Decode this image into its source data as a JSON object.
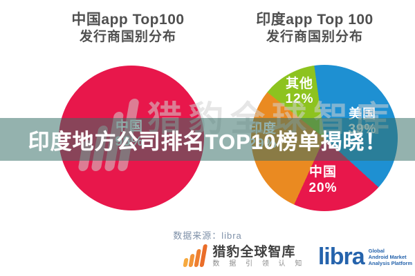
{
  "banner": {
    "text": "印度地方公司排名TOP10榜单揭晓！",
    "overlay_color": "rgba(52,110,102,0.53)",
    "text_color": "#ffffff"
  },
  "watermark": {
    "text": "猎豹全球智库"
  },
  "chart_data": [
    {
      "type": "pie",
      "title": "中国app Top100 发行商国别分布",
      "title_lines": [
        "中国app Top100",
        "发行商国别分布"
      ],
      "legend_position": "none",
      "labels_on_slices": true,
      "segments": [
        {
          "label": "中国",
          "pct": 96,
          "pct_label": "96%",
          "color": "#e8174b"
        }
      ]
    },
    {
      "type": "pie",
      "title": "印度app Top 100 发行商国别分布",
      "title_lines": [
        "印度app Top 100",
        "发行商国别分布"
      ],
      "legend_position": "none",
      "labels_on_slices": true,
      "start_angle_deg": -8,
      "direction": "clockwise",
      "segments": [
        {
          "label": "美国",
          "pct": 39,
          "pct_label": "39%",
          "color": "#1e90d2"
        },
        {
          "label": "中国",
          "pct": 20,
          "pct_label": "20%",
          "color": "#e8174b"
        },
        {
          "label": "印度",
          "pct": 29,
          "pct_label": "29%",
          "color": "#ea8a21"
        },
        {
          "label": "其他",
          "pct": 12,
          "pct_label": "12%",
          "color": "#8dc31f"
        }
      ]
    }
  ],
  "footer": {
    "source": "数据来源：libra",
    "cheetah": {
      "title": "猎豹全球智库",
      "subtitle": "数 据 引 领 认 知",
      "accent_color": "#ee7f30"
    },
    "libra": {
      "wordmark": "libra",
      "color": "#2563ac",
      "tagline": [
        "Global",
        "Android Market",
        "Analysis Platform"
      ]
    }
  }
}
